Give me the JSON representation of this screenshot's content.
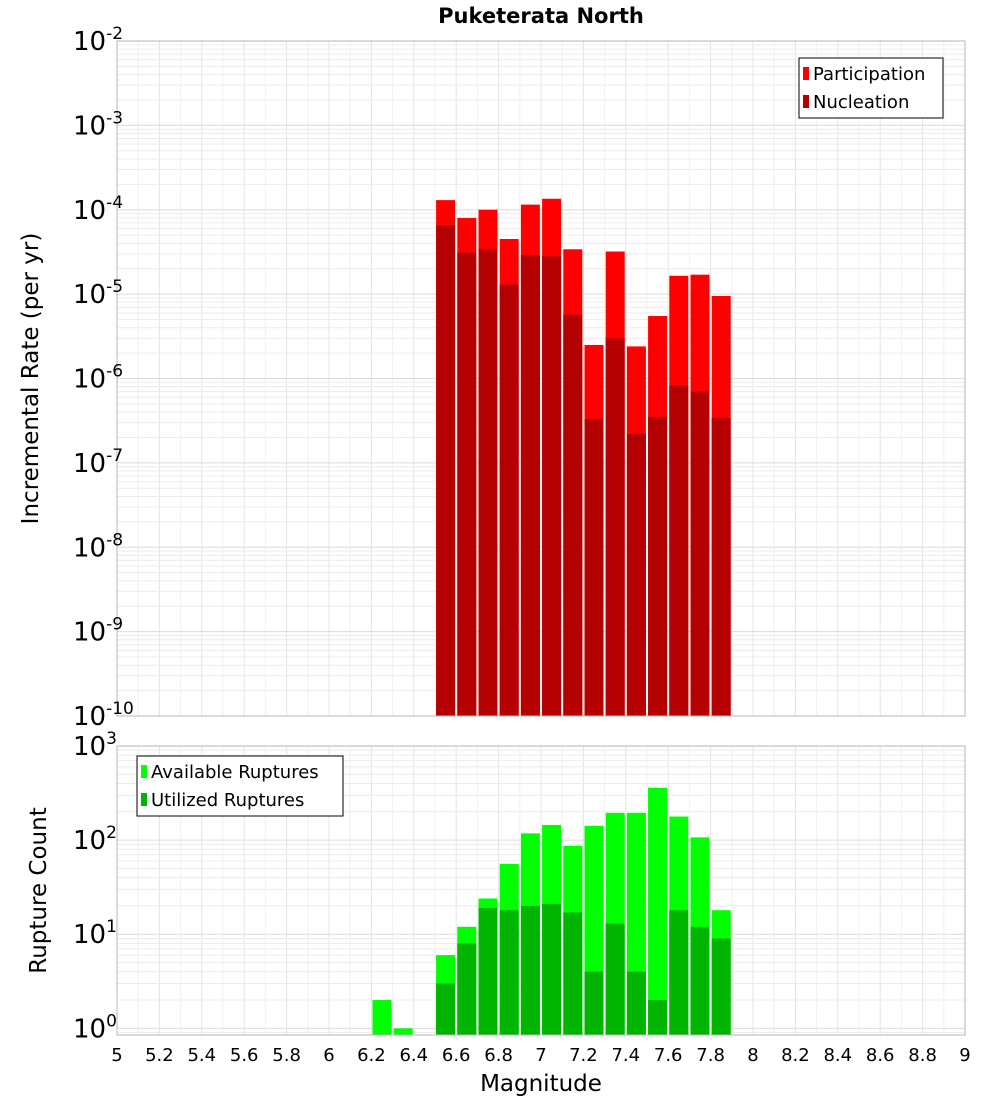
{
  "chart_data": {
    "type": "bar",
    "title": "Puketerata North",
    "xlabel": "Magnitude",
    "xlim": [
      5,
      9
    ],
    "xticks": [
      "5",
      "5.2",
      "5.4",
      "5.6",
      "5.8",
      "6",
      "6.2",
      "6.4",
      "6.6",
      "6.8",
      "7",
      "7.2",
      "7.4",
      "7.6",
      "7.8",
      "8",
      "8.2",
      "8.4",
      "8.6",
      "8.8",
      "9"
    ],
    "grid": true,
    "panels": [
      {
        "ylabel": "Incremental Rate (per yr)",
        "yscale": "log",
        "ylim": [
          1e-10,
          0.01
        ],
        "yticks": [
          {
            "base": "10",
            "exp": "-2"
          },
          {
            "base": "10",
            "exp": "-3"
          },
          {
            "base": "10",
            "exp": "-4"
          },
          {
            "base": "10",
            "exp": "-5"
          },
          {
            "base": "10",
            "exp": "-6"
          },
          {
            "base": "10",
            "exp": "-7"
          },
          {
            "base": "10",
            "exp": "-8"
          },
          {
            "base": "10",
            "exp": "-9"
          },
          {
            "base": "10",
            "exp": "-10"
          }
        ],
        "legend_position": "top-right",
        "x": [
          6.55,
          6.65,
          6.75,
          6.85,
          6.95,
          7.05,
          7.15,
          7.25,
          7.35,
          7.45,
          7.55,
          7.65,
          7.75,
          7.85
        ],
        "series": [
          {
            "name": "Participation",
            "color": "#ff0000",
            "values": [
              0.00013,
              8e-05,
              0.0001,
              4.5e-05,
              0.000115,
              0.000135,
              3.4e-05,
              2.5e-06,
              3.2e-05,
              2.4e-06,
              5.5e-06,
              1.65e-05,
              1.7e-05,
              9.5e-06
            ]
          },
          {
            "name": "Nucleation",
            "color": "#b40000",
            "values": [
              6.5e-05,
              3.1e-05,
              3.4e-05,
              1.3e-05,
              2.9e-05,
              2.8e-05,
              5.7e-06,
              3.3e-07,
              3e-06,
              2.2e-07,
              3.5e-07,
              8.2e-07,
              7e-07,
              3.4e-07
            ]
          }
        ]
      },
      {
        "ylabel": "Rupture Count",
        "yscale": "log",
        "ylim": [
          0.85,
          1000
        ],
        "yticks": [
          {
            "base": "10",
            "exp": "3"
          },
          {
            "base": "10",
            "exp": "2"
          },
          {
            "base": "10",
            "exp": "1"
          },
          {
            "base": "10",
            "exp": "0"
          }
        ],
        "legend_position": "top-left",
        "x": [
          6.25,
          6.35,
          6.55,
          6.65,
          6.75,
          6.85,
          6.95,
          7.05,
          7.15,
          7.25,
          7.35,
          7.45,
          7.55,
          7.65,
          7.75,
          7.85
        ],
        "series": [
          {
            "name": "Available Ruptures",
            "color": "#00ff00",
            "values": [
              2,
              1,
              6,
              12,
              24,
              56,
              118,
              145,
              87,
              142,
              195,
              195,
              360,
              178,
              107,
              18
            ]
          },
          {
            "name": "Utilized Ruptures",
            "color": "#00b400",
            "values": [
              0,
              0,
              3,
              8,
              19,
              18,
              20,
              21,
              17,
              4,
              13,
              4,
              2,
              18,
              12,
              9
            ]
          }
        ]
      }
    ]
  }
}
